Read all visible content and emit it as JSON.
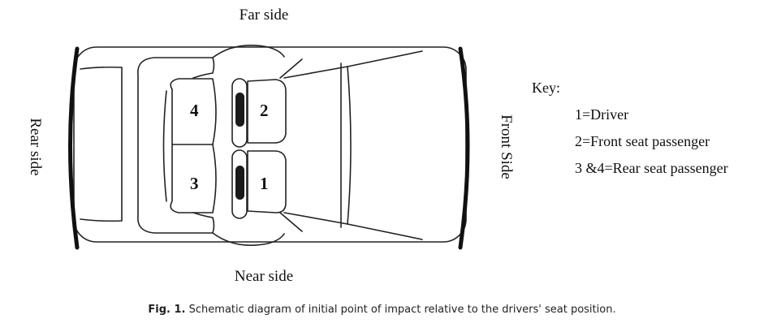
{
  "labels": {
    "far_side": "Far side",
    "near_side": "Near side",
    "rear_side": "Rear side",
    "front_side": "Front Side"
  },
  "seats": {
    "driver": "1",
    "front_passenger": "2",
    "rear_near": "3",
    "rear_far": "4"
  },
  "key": {
    "title": "Key:",
    "items": [
      "1=Driver",
      "2=Front seat passenger",
      "3 &4=Rear seat passenger"
    ]
  },
  "caption": {
    "label": "Fig. 1.",
    "text": "Schematic diagram of initial point of impact relative to the drivers' seat position."
  }
}
